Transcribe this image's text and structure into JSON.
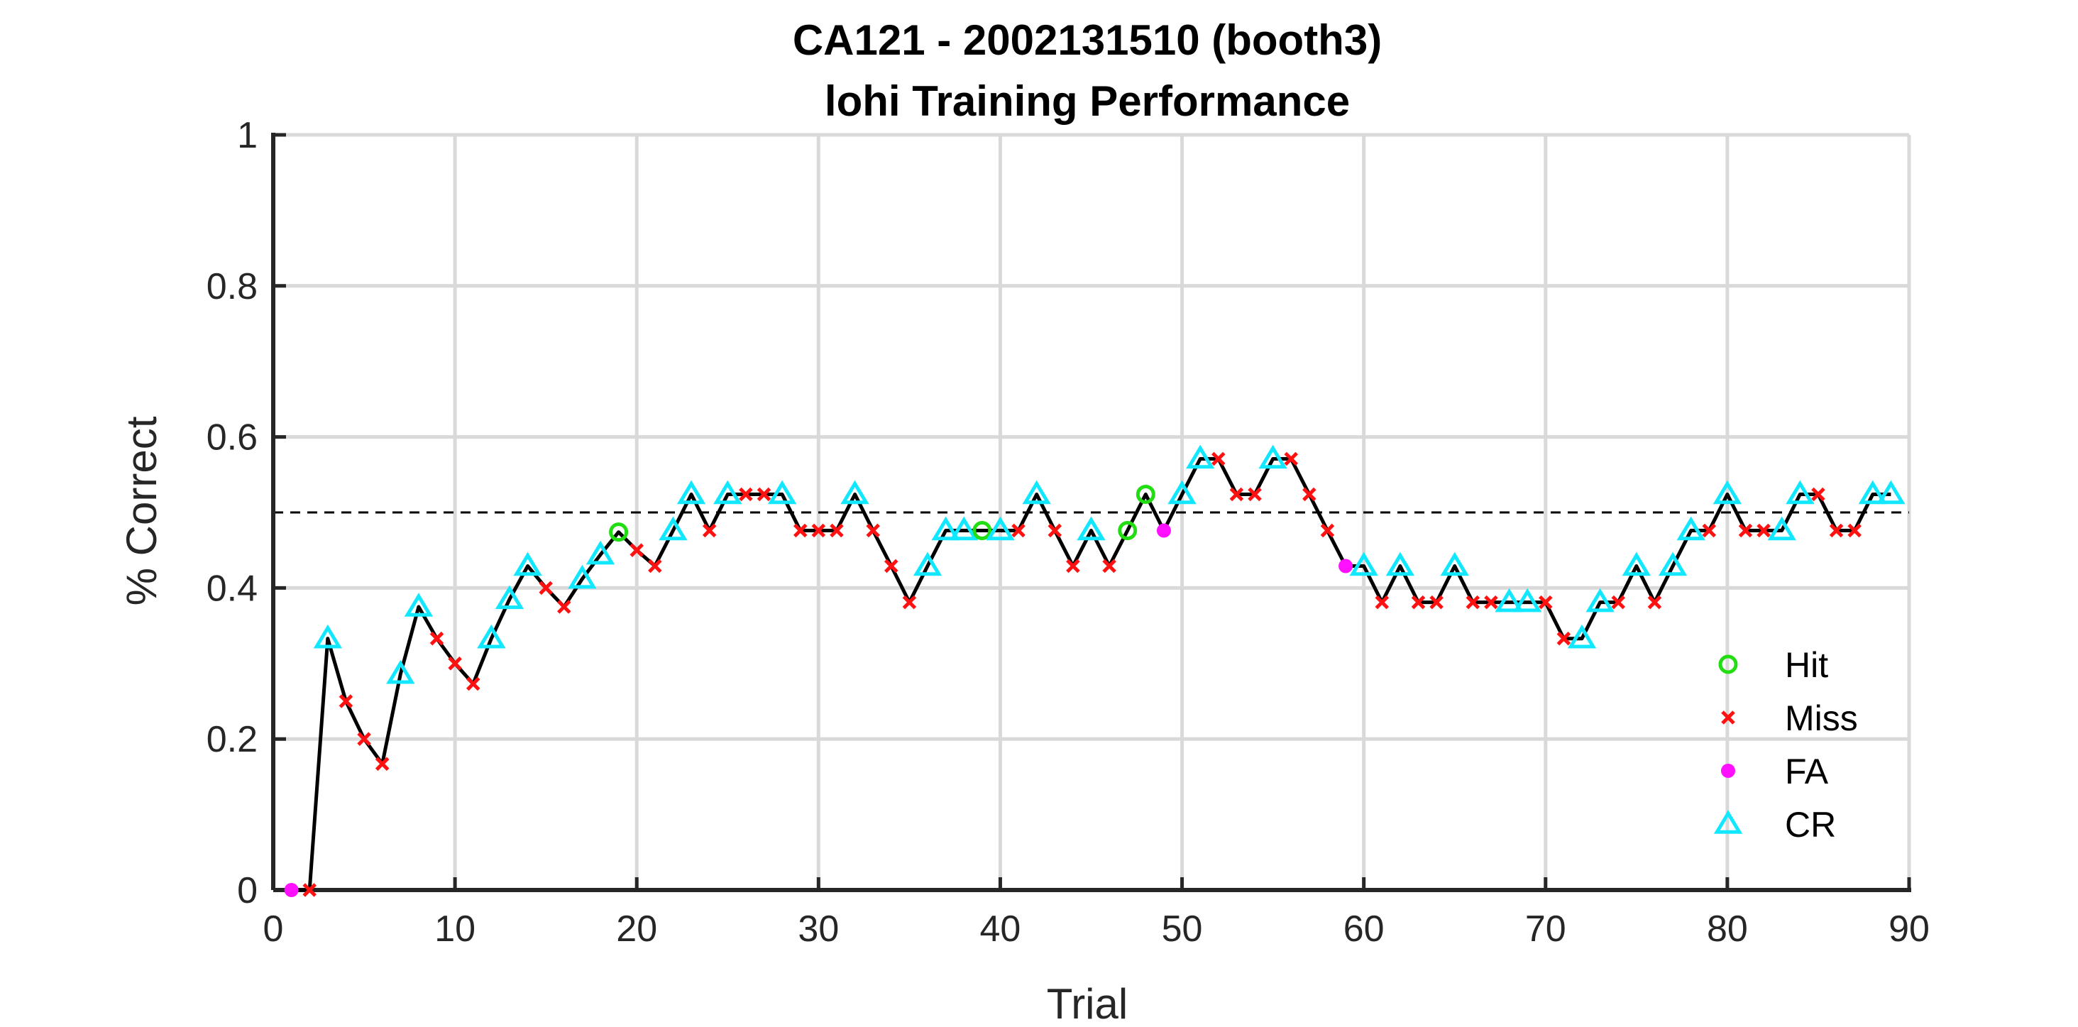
{
  "chart_data": {
    "type": "line",
    "title": "CA121 - 2002131510 (booth3)",
    "subtitle": "lohi Training Performance",
    "xlabel": "Trial",
    "ylabel": "% Correct",
    "xlim": [
      0,
      90
    ],
    "ylim": [
      0,
      1
    ],
    "xticks": [
      "0",
      "10",
      "20",
      "30",
      "40",
      "50",
      "60",
      "70",
      "80",
      "90"
    ],
    "yticks": [
      "0",
      "0.2",
      "0.4",
      "0.6",
      "0.8",
      "1"
    ],
    "grid": true,
    "legend_position": "bottom-right",
    "reference_line": {
      "y": 0.5,
      "style": "dashed"
    },
    "colors": {
      "line": "#000000",
      "hit": "#22dd11",
      "miss": "#ff1111",
      "fa": "#ff11ff",
      "cr": "#11e8ff",
      "grid": "#d9d9d9",
      "axis": "#262626"
    },
    "x": [
      1,
      2,
      3,
      4,
      5,
      6,
      7,
      8,
      9,
      10,
      11,
      12,
      13,
      14,
      15,
      16,
      17,
      18,
      19,
      20,
      21,
      22,
      23,
      24,
      25,
      26,
      27,
      28,
      29,
      30,
      31,
      32,
      33,
      34,
      35,
      36,
      37,
      38,
      39,
      40,
      41,
      42,
      43,
      44,
      45,
      46,
      47,
      48,
      49,
      50,
      51,
      52,
      53,
      54,
      55,
      56,
      57,
      58,
      59,
      60,
      61,
      62,
      63,
      64,
      65,
      66,
      67,
      68,
      69,
      70,
      71,
      72,
      73,
      74,
      75,
      76,
      77,
      78,
      79,
      80,
      81,
      82,
      83,
      84,
      85,
      86,
      87,
      88,
      89
    ],
    "y": [
      0,
      0,
      0.333,
      0.25,
      0.2,
      0.167,
      0.286,
      0.375,
      0.333,
      0.3,
      0.273,
      0.333,
      0.385,
      0.429,
      0.4,
      0.375,
      0.412,
      0.444,
      0.474,
      0.45,
      0.429,
      0.476,
      0.524,
      0.476,
      0.524,
      0.524,
      0.524,
      0.524,
      0.476,
      0.476,
      0.476,
      0.524,
      0.476,
      0.429,
      0.381,
      0.429,
      0.476,
      0.476,
      0.476,
      0.476,
      0.476,
      0.524,
      0.476,
      0.429,
      0.476,
      0.429,
      0.476,
      0.524,
      0.476,
      0.524,
      0.571,
      0.571,
      0.524,
      0.524,
      0.571,
      0.571,
      0.524,
      0.476,
      0.429,
      0.429,
      0.381,
      0.429,
      0.381,
      0.381,
      0.429,
      0.381,
      0.381,
      0.381,
      0.381,
      0.381,
      0.333,
      0.333,
      0.381,
      0.381,
      0.429,
      0.381,
      0.429,
      0.476,
      0.476,
      0.524,
      0.476,
      0.476,
      0.476,
      0.524,
      0.524,
      0.476,
      0.476,
      0.524,
      0.524
    ],
    "outcomes": [
      "FA",
      "Miss",
      "CR",
      "Miss",
      "Miss",
      "Miss",
      "CR",
      "CR",
      "Miss",
      "Miss",
      "Miss",
      "CR",
      "CR",
      "CR",
      "Miss",
      "Miss",
      "CR",
      "CR",
      "Hit",
      "Miss",
      "Miss",
      "CR",
      "CR",
      "Miss",
      "CR",
      "Miss",
      "Miss",
      "CR",
      "Miss",
      "Miss",
      "Miss",
      "CR",
      "Miss",
      "Miss",
      "Miss",
      "CR",
      "CR",
      "CR",
      "Hit",
      "CR",
      "Miss",
      "CR",
      "Miss",
      "Miss",
      "CR",
      "Miss",
      "Hit",
      "Hit",
      "FA",
      "CR",
      "CR",
      "Miss",
      "Miss",
      "Miss",
      "CR",
      "Miss",
      "Miss",
      "Miss",
      "FA",
      "CR",
      "Miss",
      "CR",
      "Miss",
      "Miss",
      "CR",
      "Miss",
      "Miss",
      "CR",
      "CR",
      "Miss",
      "Miss",
      "CR",
      "CR",
      "Miss",
      "CR",
      "Miss",
      "CR",
      "CR",
      "Miss",
      "CR",
      "Miss",
      "Miss",
      "CR",
      "CR",
      "Miss",
      "Miss",
      "Miss",
      "CR",
      "CR"
    ],
    "legend": [
      {
        "key": "Hit",
        "label": "Hit"
      },
      {
        "key": "Miss",
        "label": "Miss"
      },
      {
        "key": "FA",
        "label": "FA"
      },
      {
        "key": "CR",
        "label": "CR"
      }
    ]
  }
}
